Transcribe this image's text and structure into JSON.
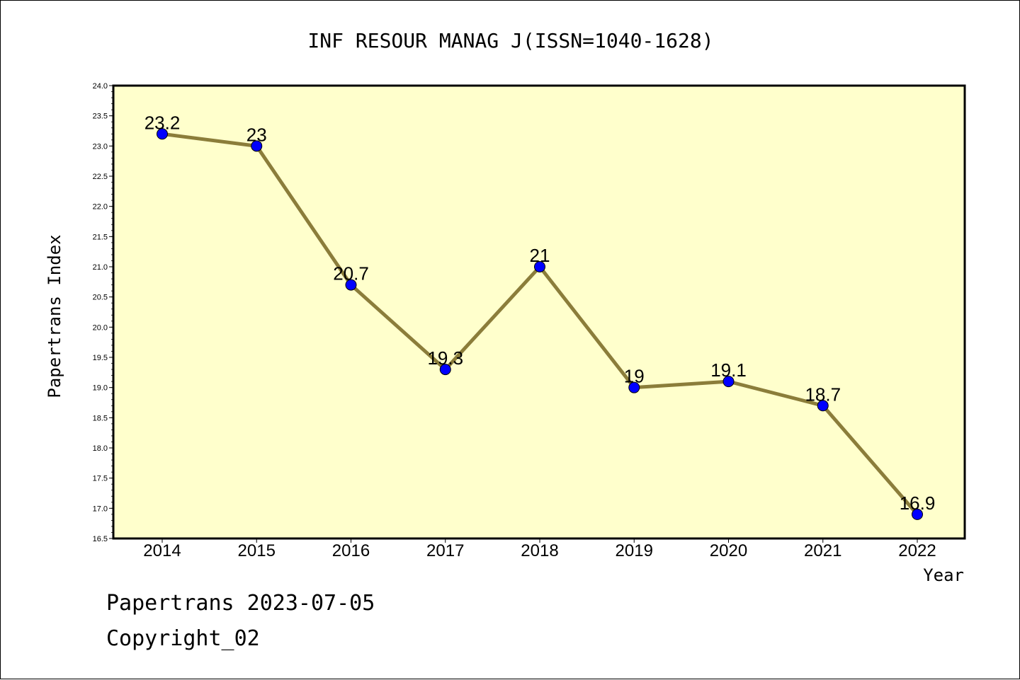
{
  "chart_data": {
    "type": "line",
    "title": "INF RESOUR MANAG J(ISSN=1040-1628)",
    "xlabel": "Year",
    "ylabel": "Papertrans Index",
    "categories": [
      "2014",
      "2015",
      "2016",
      "2017",
      "2018",
      "2019",
      "2020",
      "2021",
      "2022"
    ],
    "values": [
      23.2,
      23,
      20.7,
      19.3,
      21,
      19,
      19.1,
      18.7,
      16.9
    ],
    "data_labels": [
      "23.2",
      "23",
      "20.7",
      "19.3",
      "21",
      "19",
      "19.1",
      "18.7",
      "16.9"
    ],
    "ylim": [
      16.5,
      24.0
    ],
    "yticks": [
      "16.5",
      "17.0",
      "17.5",
      "18.0",
      "18.5",
      "19.0",
      "19.5",
      "20.0",
      "20.5",
      "21.0",
      "21.5",
      "22.0",
      "22.5",
      "23.0",
      "23.5",
      "24.0"
    ],
    "grid": false,
    "legend": "none",
    "colors": {
      "plot_background": "#ffffcc",
      "line": "#8b7d3a",
      "marker": "#0000ff",
      "marker_edge": "#000000",
      "frame": "#000000"
    }
  },
  "footer": {
    "source": "Papertrans 2023-07-05",
    "copyright": "Copyright_02"
  }
}
